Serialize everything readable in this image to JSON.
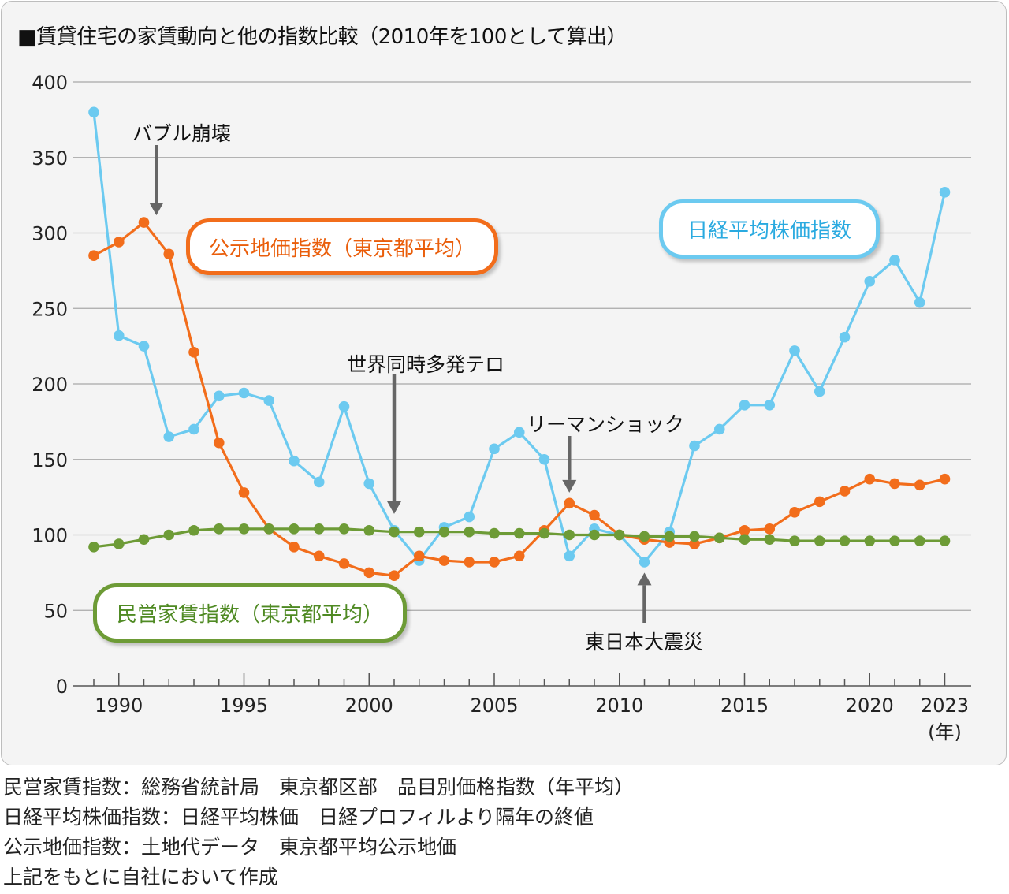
{
  "chart_title": "■賃貸住宅の家賃動向と他の指数比較（2010年を100として算出）",
  "chart_data": {
    "type": "line",
    "title": "■賃貸住宅の家賃動向と他の指数比較（2010年を100として算出）",
    "xlabel": "(年)",
    "ylabel": "",
    "ylim": [
      0,
      400
    ],
    "xlim": [
      1989,
      2023
    ],
    "yticks": [
      "0",
      "50",
      "100",
      "150",
      "200",
      "250",
      "300",
      "350",
      "400"
    ],
    "xticks": [
      "1990",
      "1995",
      "2000",
      "2005",
      "2010",
      "2015",
      "2020",
      "2023"
    ],
    "grid": true,
    "x": [
      1989,
      1990,
      1991,
      1992,
      1993,
      1994,
      1995,
      1996,
      1997,
      1998,
      1999,
      2000,
      2001,
      2002,
      2003,
      2004,
      2005,
      2006,
      2007,
      2008,
      2009,
      2010,
      2011,
      2012,
      2013,
      2014,
      2015,
      2016,
      2017,
      2018,
      2019,
      2020,
      2021,
      2022,
      2023
    ],
    "series": [
      {
        "name": "日経平均株価指数",
        "color": "#6ccaf0",
        "values": [
          380,
          232,
          225,
          165,
          170,
          192,
          194,
          189,
          149,
          135,
          185,
          134,
          103,
          83,
          105,
          112,
          157,
          168,
          150,
          86,
          104,
          100,
          82,
          102,
          159,
          170,
          186,
          186,
          222,
          195,
          231,
          268,
          282,
          254,
          327
        ]
      },
      {
        "name": "公示地価指数（東京都平均）",
        "color": "#f26d1b",
        "values": [
          285,
          294,
          307,
          286,
          221,
          161,
          128,
          104,
          92,
          86,
          81,
          75,
          73,
          86,
          83,
          82,
          82,
          86,
          103,
          121,
          113,
          100,
          97,
          95,
          94,
          98,
          103,
          104,
          115,
          122,
          129,
          137,
          134,
          133,
          137
        ]
      },
      {
        "name": "民営家賃指数（東京都平均）",
        "color": "#6d9b36",
        "values": [
          92,
          94,
          97,
          100,
          103,
          104,
          104,
          104,
          104,
          104,
          104,
          103,
          102,
          102,
          102,
          102,
          101,
          101,
          101,
          100,
          100,
          100,
          99,
          99,
          99,
          98,
          97,
          97,
          96,
          96,
          96,
          96,
          96,
          96,
          96
        ]
      }
    ],
    "annotations": [
      {
        "text": "バブル崩壊",
        "x": 1991.5,
        "target_y": 307
      },
      {
        "text": "世界同時多発テロ",
        "x": 2001,
        "target_y": 116
      },
      {
        "text": "リーマンショック",
        "x": 2008,
        "target_y": 128
      },
      {
        "text": "東日本大震災",
        "x": 2011,
        "target_y": 75
      }
    ]
  },
  "series_labels": {
    "koji": "公示地価指数（東京都平均）",
    "nikkei": "日経平均株価指数",
    "minei": "民営家賃指数（東京都平均）"
  },
  "sources": [
    "民営家賃指数：総務省統計局　東京都区部　品目別価格指数（年平均）",
    "日経平均株価指数：日経平均株価　日経プロフィルより隔年の終値",
    "公示地価指数：土地代データ　東京都平均公示地価",
    "上記をもとに自社において作成"
  ]
}
